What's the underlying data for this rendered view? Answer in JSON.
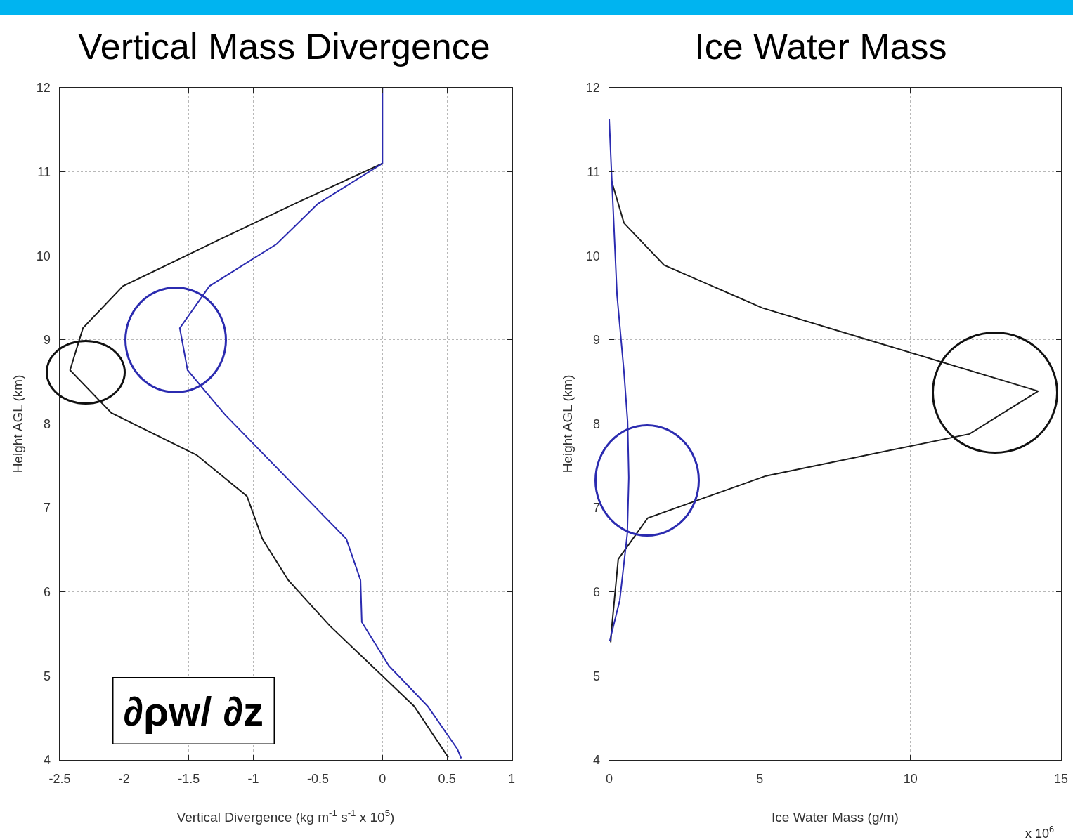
{
  "chart_data": [
    {
      "type": "line",
      "title": "Vertical Mass Divergence",
      "xlabel": "Vertical Divergence (kg m$^{-1}$ s$^{-1}$ x 10$^{5}$)",
      "ylabel": "Height AGL (km)",
      "xlim": [
        -2.5,
        1
      ],
      "xticks": [
        -2.5,
        -2,
        -1.5,
        -1,
        -0.5,
        0,
        0.5,
        1
      ],
      "ylim": [
        4,
        12
      ],
      "yticks": [
        4,
        5,
        6,
        7,
        8,
        9,
        10,
        11,
        12
      ],
      "grid": true,
      "marker": "none",
      "line_style": "solid",
      "annotations": [
        "∂ρw/ ∂z"
      ],
      "series": [
        {
          "color": "#1a1a1a",
          "x": [
            0,
            -0.68,
            -1.28,
            -2.01,
            -2.32,
            -2.42,
            -2.1,
            -1.44,
            -1.05,
            -0.93,
            -0.73,
            -0.41,
            0.245,
            0.51
          ],
          "values": [
            11.1,
            10.62,
            10.18,
            9.64,
            9.14,
            8.64,
            8.13,
            7.63,
            7.14,
            6.63,
            6.14,
            5.6,
            4.64,
            4.03
          ]
        },
        {
          "color": "#2b2bb0",
          "x": [
            0,
            0,
            -0.5,
            -0.82,
            -1.34,
            -1.57,
            -1.51,
            -1.22,
            -0.28,
            -0.17,
            -0.16,
            0.05,
            0.35,
            0.58,
            0.61
          ],
          "values": [
            12,
            11.1,
            10.62,
            10.14,
            9.64,
            9.14,
            8.64,
            8.11,
            6.63,
            6.14,
            5.64,
            5.12,
            4.64,
            4.13,
            4.02
          ]
        }
      ]
    },
    {
      "type": "line",
      "title": "Ice Water Mass",
      "xlabel": "Ice Water Mass (g/m)",
      "ylabel": "Height AGL (km)",
      "xlim": [
        0,
        15
      ],
      "xticks": [
        0,
        5,
        10,
        15
      ],
      "ylim": [
        4,
        12
      ],
      "yticks": [
        4,
        5,
        6,
        7,
        8,
        9,
        10,
        11,
        12
      ],
      "grid": true,
      "marker": "none",
      "line_style": "solid",
      "annotations": [
        "x 10$^{6}$"
      ],
      "series": [
        {
          "color": "#1a1a1a",
          "x": [
            0.07,
            0.49,
            1.82,
            5.08,
            14.24,
            11.96,
            5.2,
            1.28,
            0.3,
            0.07,
            0.05
          ],
          "values": [
            10.9,
            10.39,
            9.89,
            9.38,
            8.39,
            7.88,
            7.38,
            6.88,
            6.39,
            5.52,
            5.4
          ]
        },
        {
          "color": "#2b2bb0",
          "x": [
            0,
            0.07,
            0.26,
            0.49,
            0.61,
            0.65,
            0.6,
            0.35,
            0.02
          ],
          "values": [
            11.63,
            11.04,
            9.53,
            8.62,
            8.03,
            7.36,
            6.69,
            5.9,
            5.42
          ]
        }
      ]
    }
  ]
}
